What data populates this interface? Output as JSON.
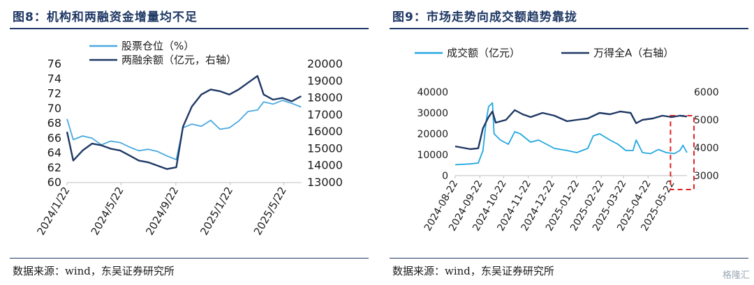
{
  "left": {
    "title": "图8：机构和两融资金增量均不足",
    "source": "数据来源：wind，东吴证券研究所",
    "chart_data": {
      "type": "line",
      "title": "图8：机构和两融资金增量均不足",
      "x_ticks": [
        "2024/1/22",
        "2024/5/22",
        "2024/9/22",
        "2025/1/22",
        "2025/5/22"
      ],
      "x_range": [
        "2024-01-22",
        "2025-07-01"
      ],
      "y_left": {
        "ticks": [
          60,
          62,
          64,
          66,
          68,
          70,
          72,
          74,
          76
        ],
        "range": [
          60,
          76
        ]
      },
      "y_right": {
        "ticks": [
          13000,
          14000,
          15000,
          16000,
          17000,
          18000,
          19000,
          20000
        ],
        "range": [
          13000,
          20000
        ]
      },
      "grid": false,
      "legend_position": "top-center",
      "series": [
        {
          "name": "股票仓位（%）",
          "axis": "left",
          "color": "#4aa8e0",
          "points": [
            [
              "2024-01-22",
              68.6
            ],
            [
              "2024-02-05",
              65.8
            ],
            [
              "2024-02-26",
              66.3
            ],
            [
              "2024-03-18",
              66.0
            ],
            [
              "2024-04-08",
              65.1
            ],
            [
              "2024-04-29",
              65.6
            ],
            [
              "2024-05-20",
              65.4
            ],
            [
              "2024-06-10",
              64.8
            ],
            [
              "2024-07-01",
              64.3
            ],
            [
              "2024-07-22",
              64.5
            ],
            [
              "2024-08-12",
              64.2
            ],
            [
              "2024-09-02",
              63.6
            ],
            [
              "2024-09-23",
              63.1
            ],
            [
              "2024-10-08",
              67.4
            ],
            [
              "2024-10-28",
              67.9
            ],
            [
              "2024-11-18",
              67.6
            ],
            [
              "2024-12-09",
              68.4
            ],
            [
              "2024-12-30",
              67.2
            ],
            [
              "2025-01-20",
              67.4
            ],
            [
              "2025-02-10",
              68.3
            ],
            [
              "2025-03-03",
              69.6
            ],
            [
              "2025-03-24",
              69.8
            ],
            [
              "2025-04-07",
              70.9
            ],
            [
              "2025-04-28",
              70.6
            ],
            [
              "2025-05-19",
              71.1
            ],
            [
              "2025-06-09",
              70.7
            ],
            [
              "2025-06-30",
              70.2
            ]
          ]
        },
        {
          "name": "两融余额（亿元，右轴）",
          "axis": "right",
          "color": "#1f3864",
          "points": [
            [
              "2024-01-22",
              16000
            ],
            [
              "2024-02-05",
              14300
            ],
            [
              "2024-02-26",
              14900
            ],
            [
              "2024-03-18",
              15300
            ],
            [
              "2024-04-08",
              15200
            ],
            [
              "2024-04-29",
              15000
            ],
            [
              "2024-05-20",
              14900
            ],
            [
              "2024-06-10",
              14600
            ],
            [
              "2024-07-01",
              14300
            ],
            [
              "2024-07-22",
              14200
            ],
            [
              "2024-08-12",
              14000
            ],
            [
              "2024-09-02",
              13800
            ],
            [
              "2024-09-23",
              13900
            ],
            [
              "2024-10-08",
              16300
            ],
            [
              "2024-10-28",
              17500
            ],
            [
              "2024-11-18",
              18200
            ],
            [
              "2024-12-09",
              18500
            ],
            [
              "2024-12-30",
              18400
            ],
            [
              "2025-01-20",
              18200
            ],
            [
              "2025-02-10",
              18500
            ],
            [
              "2025-03-03",
              18900
            ],
            [
              "2025-03-24",
              19300
            ],
            [
              "2025-04-07",
              18200
            ],
            [
              "2025-04-28",
              17900
            ],
            [
              "2025-05-19",
              18000
            ],
            [
              "2025-06-09",
              17800
            ],
            [
              "2025-06-30",
              18100
            ]
          ]
        }
      ]
    }
  },
  "right": {
    "title": "图9：市场走势向成交额趋势靠拢",
    "source": "数据来源：wind，东吴证券研究所",
    "chart_data": {
      "type": "line",
      "title": "图9：市场走势向成交额趋势靠拢",
      "x_ticks": [
        "2024-08-22",
        "2024-09-22",
        "2024-10-22",
        "2024-11-22",
        "2024-12-22",
        "2025-01-22",
        "2025-02-22",
        "2025-03-22",
        "2025-04-22",
        "2025-05-22"
      ],
      "x_range": [
        "2024-08-22",
        "2025-06-10"
      ],
      "y_left": {
        "ticks": [
          0,
          10000,
          20000,
          30000,
          40000
        ],
        "range": [
          0,
          40000
        ]
      },
      "y_right": {
        "ticks": [
          3000,
          4000,
          5000,
          6000
        ],
        "range": [
          3000,
          6000
        ]
      },
      "grid": false,
      "legend_position": "top",
      "highlight_range": [
        "2025-05-22",
        "2025-06-10"
      ],
      "series": [
        {
          "name": "成交额（亿元）",
          "axis": "left",
          "color": "#22a7e0",
          "points": [
            [
              "2024-08-22",
              5200
            ],
            [
              "2024-09-10",
              5600
            ],
            [
              "2024-09-20",
              6000
            ],
            [
              "2024-09-26",
              12000
            ],
            [
              "2024-09-30",
              26000
            ],
            [
              "2024-10-03",
              33000
            ],
            [
              "2024-10-08",
              34800
            ],
            [
              "2024-10-10",
              20000
            ],
            [
              "2024-10-18",
              17000
            ],
            [
              "2024-10-28",
              15000
            ],
            [
              "2024-11-05",
              21000
            ],
            [
              "2024-11-12",
              20000
            ],
            [
              "2024-11-25",
              16000
            ],
            [
              "2024-12-05",
              17000
            ],
            [
              "2024-12-15",
              15000
            ],
            [
              "2024-12-25",
              13000
            ],
            [
              "2025-01-10",
              12000
            ],
            [
              "2025-01-22",
              11000
            ],
            [
              "2025-02-05",
              13000
            ],
            [
              "2025-02-12",
              19000
            ],
            [
              "2025-02-20",
              20000
            ],
            [
              "2025-03-05",
              17000
            ],
            [
              "2025-03-15",
              15000
            ],
            [
              "2025-03-25",
              12000
            ],
            [
              "2025-04-03",
              12000
            ],
            [
              "2025-04-07",
              17000
            ],
            [
              "2025-04-15",
              11000
            ],
            [
              "2025-04-25",
              10500
            ],
            [
              "2025-05-05",
              12500
            ],
            [
              "2025-05-15",
              11000
            ],
            [
              "2025-05-25",
              10500
            ],
            [
              "2025-06-01",
              12000
            ],
            [
              "2025-06-05",
              14500
            ],
            [
              "2025-06-10",
              11000
            ]
          ]
        },
        {
          "name": "万得全A（右轴）",
          "axis": "right",
          "color": "#1f3864",
          "points": [
            [
              "2024-08-22",
              4050
            ],
            [
              "2024-09-10",
              3950
            ],
            [
              "2024-09-20",
              3980
            ],
            [
              "2024-09-26",
              4700
            ],
            [
              "2024-10-03",
              5100
            ],
            [
              "2024-10-08",
              5300
            ],
            [
              "2024-10-12",
              4900
            ],
            [
              "2024-10-25",
              5000
            ],
            [
              "2024-11-05",
              5350
            ],
            [
              "2024-11-15",
              5200
            ],
            [
              "2024-11-25",
              5100
            ],
            [
              "2024-12-10",
              5250
            ],
            [
              "2024-12-25",
              5150
            ],
            [
              "2025-01-10",
              4950
            ],
            [
              "2025-01-22",
              5000
            ],
            [
              "2025-02-05",
              5050
            ],
            [
              "2025-02-20",
              5250
            ],
            [
              "2025-03-05",
              5200
            ],
            [
              "2025-03-18",
              5300
            ],
            [
              "2025-03-31",
              5250
            ],
            [
              "2025-04-07",
              4880
            ],
            [
              "2025-04-15",
              5000
            ],
            [
              "2025-04-28",
              5050
            ],
            [
              "2025-05-10",
              5150
            ],
            [
              "2025-05-22",
              5100
            ],
            [
              "2025-06-01",
              5150
            ],
            [
              "2025-06-10",
              5120
            ]
          ]
        }
      ]
    }
  },
  "watermark": "格隆汇"
}
